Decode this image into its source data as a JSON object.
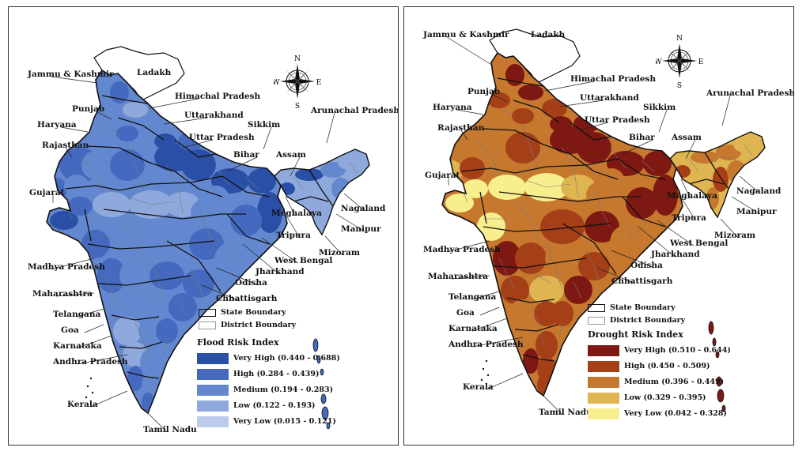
{
  "maps": [
    {
      "id": "flood",
      "legend_title": "Flood Risk Index",
      "boundary_labels": {
        "state": "State Boundary",
        "district": "District Boundary"
      },
      "classes": [
        {
          "label": "Very High (0.440 - 0.688)",
          "color": "#2a4fa6"
        },
        {
          "label": "High (0.284 - 0.439)",
          "color": "#4469bf"
        },
        {
          "label": "Medium (0.194 - 0.283)",
          "color": "#6488cf"
        },
        {
          "label": "Low (0.122 - 0.193)",
          "color": "#8fa9dc"
        },
        {
          "label": "Very Low (0.015 - 0.121)",
          "color": "#bccbeb"
        }
      ],
      "state_labels": [
        "Jammu & Kashmir",
        "Ladakh",
        "Himachal Pradesh",
        "Punjab",
        "Uttarakhand",
        "Haryana",
        "Uttar Pradesh",
        "Sikkim",
        "Arunachal Pradesh",
        "Rajasthan",
        "Bihar",
        "Assam",
        "Gujarat",
        "Meghalaya",
        "Nagaland",
        "Manipur",
        "Tripura",
        "West Bengal",
        "Mizoram",
        "Madhya Pradesh",
        "Jharkhand",
        "Odisha",
        "Maharashtra",
        "Chhattisgarh",
        "Telangana",
        "Goa",
        "Karnataka",
        "Andhra Pradesh",
        "Kerala",
        "Tamil Nadu"
      ]
    },
    {
      "id": "drought",
      "legend_title": "Drought Risk Index",
      "boundary_labels": {
        "state": "State Boundary",
        "district": "District Boundary"
      },
      "classes": [
        {
          "label": "Very High (0.510 - 0.644)",
          "color": "#7d1812"
        },
        {
          "label": "High (0.450 - 0.509)",
          "color": "#a53f18"
        },
        {
          "label": "Medium (0.396 - 0.449)",
          "color": "#c5782e"
        },
        {
          "label": "Low (0.329 - 0.395)",
          "color": "#dfb552"
        },
        {
          "label": "Very Low (0.042 - 0.328)",
          "color": "#f7ee8d"
        }
      ],
      "state_labels": [
        "Jammu & Kashmir",
        "Ladakh",
        "Himachal Pradesh",
        "Punjab",
        "Uttarakhand",
        "Haryana",
        "Uttar Pradesh",
        "Sikkim",
        "Arunachal Pradesh",
        "Rajasthan",
        "Bihar",
        "Assam",
        "Gujarat",
        "Meghalaya",
        "Nagaland",
        "Manipur",
        "Tripura",
        "West Bengal",
        "Mizoram",
        "Madhya Pradesh",
        "Jharkhand",
        "Odisha",
        "Maharashtra",
        "Chhattisgarh",
        "Telangana",
        "Goa",
        "Karnataka",
        "Andhra Pradesh",
        "Kerala",
        "Tamil Nadu"
      ]
    }
  ],
  "compass": {
    "n": "N",
    "s": "S",
    "e": "E",
    "w": "W"
  },
  "colors": {
    "ladakh_fill": "#ffffff",
    "outline": "#111111",
    "district_line": "#7a7a7a"
  }
}
